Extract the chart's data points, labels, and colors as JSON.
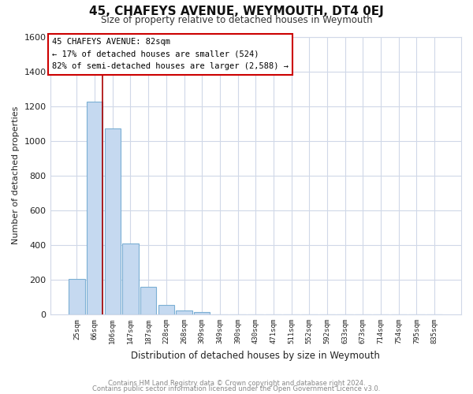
{
  "title": "45, CHAFEYS AVENUE, WEYMOUTH, DT4 0EJ",
  "subtitle": "Size of property relative to detached houses in Weymouth",
  "xlabel": "Distribution of detached houses by size in Weymouth",
  "ylabel": "Number of detached properties",
  "footnote1": "Contains HM Land Registry data © Crown copyright and database right 2024.",
  "footnote2": "Contains public sector information licensed under the Open Government Licence v3.0.",
  "bar_labels": [
    "25sqm",
    "66sqm",
    "106sqm",
    "147sqm",
    "187sqm",
    "228sqm",
    "268sqm",
    "309sqm",
    "349sqm",
    "390sqm",
    "430sqm",
    "471sqm",
    "511sqm",
    "552sqm",
    "592sqm",
    "633sqm",
    "673sqm",
    "714sqm",
    "754sqm",
    "795sqm",
    "835sqm"
  ],
  "bar_values": [
    205,
    1225,
    1070,
    410,
    160,
    55,
    22,
    15,
    0,
    0,
    0,
    0,
    0,
    0,
    0,
    0,
    0,
    0,
    0,
    0,
    0
  ],
  "bar_color": "#c5d9f0",
  "bar_edge_color": "#7bafd4",
  "ylim": [
    0,
    1600
  ],
  "yticks": [
    0,
    200,
    400,
    600,
    800,
    1000,
    1200,
    1400,
    1600
  ],
  "marker_color": "#aa0000",
  "annotation_title": "45 CHAFEYS AVENUE: 82sqm",
  "annotation_line1": "← 17% of detached houses are smaller (524)",
  "annotation_line2": "82% of semi-detached houses are larger (2,588) →",
  "background_color": "#ffffff",
  "grid_color": "#d0d8e8",
  "annotation_border_color": "#cc0000"
}
